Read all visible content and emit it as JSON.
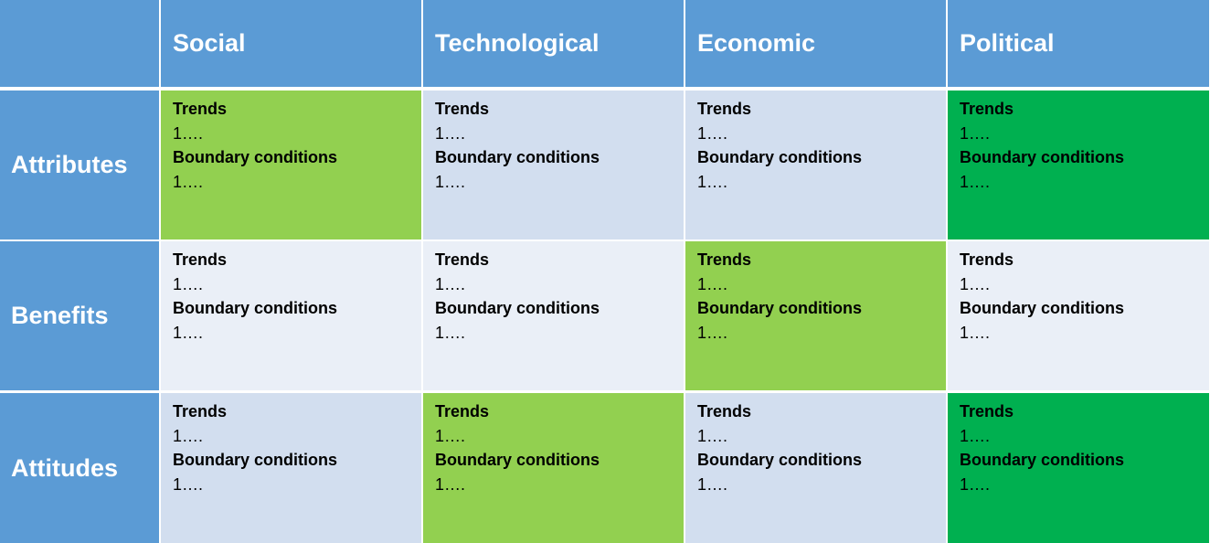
{
  "table": {
    "columns": [
      "Social",
      "Technological",
      "Economic",
      "Political"
    ],
    "rows": [
      {
        "label": "Attributes",
        "cells": [
          {
            "color": "#92d050",
            "trends_label": "Trends",
            "trends": "1….",
            "boundary_label": "Boundary conditions",
            "boundary": "1…."
          },
          {
            "color": "#d2deef",
            "trends_label": "Trends",
            "trends": "1….",
            "boundary_label": "Boundary conditions",
            "boundary": "1…."
          },
          {
            "color": "#d2deef",
            "trends_label": "Trends",
            "trends": "1….",
            "boundary_label": "Boundary conditions",
            "boundary": "1…."
          },
          {
            "color": "#00b050",
            "trends_label": "Trends",
            "trends": "1….",
            "boundary_label": "Boundary conditions",
            "boundary": "1…."
          }
        ]
      },
      {
        "label": "Benefits",
        "cells": [
          {
            "color": "#eaeff7",
            "trends_label": "Trends",
            "trends": "1….",
            "boundary_label": "Boundary conditions",
            "boundary": "1…."
          },
          {
            "color": "#eaeff7",
            "trends_label": "Trends",
            "trends": "1….",
            "boundary_label": "Boundary conditions",
            "boundary": "1…."
          },
          {
            "color": "#92d050",
            "trends_label": "Trends",
            "trends": "1….",
            "boundary_label": "Boundary conditions",
            "boundary": "1…."
          },
          {
            "color": "#eaeff7",
            "trends_label": "Trends",
            "trends": "1….",
            "boundary_label": "Boundary conditions",
            "boundary": "1…."
          }
        ]
      },
      {
        "label": "Attitudes",
        "cells": [
          {
            "color": "#d2deef",
            "trends_label": "Trends",
            "trends": "1….",
            "boundary_label": "Boundary conditions",
            "boundary": "1…."
          },
          {
            "color": "#92d050",
            "trends_label": "Trends",
            "trends": "1….",
            "boundary_label": "Boundary conditions",
            "boundary": "1…."
          },
          {
            "color": "#d2deef",
            "trends_label": "Trends",
            "trends": "1….",
            "boundary_label": "Boundary conditions",
            "boundary": "1…."
          },
          {
            "color": "#00b050",
            "trends_label": "Trends",
            "trends": "1….",
            "boundary_label": "Boundary conditions",
            "boundary": "1…."
          }
        ]
      }
    ]
  }
}
